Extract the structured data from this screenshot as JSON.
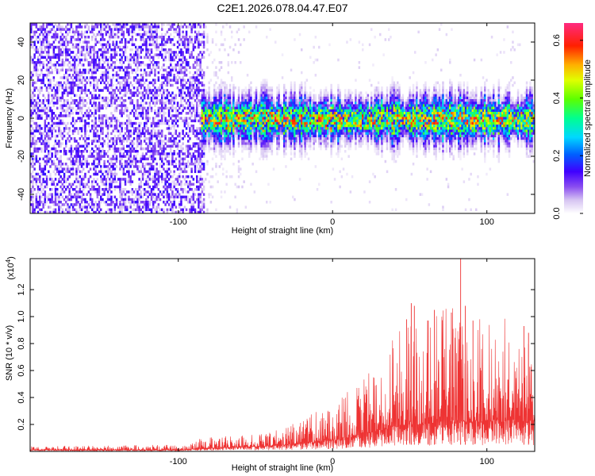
{
  "title": "C2E1.2026.078.04.47.E07",
  "chart_data": [
    {
      "type": "heatmap",
      "name": "spectrogram",
      "xlabel": "Height of straight line (km)",
      "ylabel": "Frequency (Hz)",
      "xlim": [
        -196,
        131
      ],
      "ylim": [
        -50,
        50
      ],
      "x_ticks": [
        -100,
        0,
        100
      ],
      "x_tick_labels": [
        "-100",
        "0",
        "100"
      ],
      "y_ticks": [
        -40,
        -20,
        0,
        20,
        40
      ],
      "y_tick_labels": [
        "-40",
        "-20",
        "0",
        "20",
        "40"
      ],
      "colorbar": {
        "label": "Normalized spectral amplitude",
        "range": [
          0,
          0.66
        ],
        "ticks": [
          0,
          0.2,
          0.4,
          0.6
        ],
        "tick_labels": [
          "0.0",
          "0.2",
          "0.4",
          "0.6"
        ]
      },
      "features": {
        "noise_region_x": [
          -196,
          -83
        ],
        "noise_amplitude": 0.1,
        "sparse_region_x": [
          -83,
          -60
        ],
        "signal_band_center_hz": 0,
        "signal_band_halfwidth_hz": 6,
        "signal_start_x": -86,
        "signal_peak_amplitude": 0.65
      }
    },
    {
      "type": "line",
      "name": "snr",
      "xlabel": "Height of straight line (km)",
      "ylabel": "SNR (10 * v/v)",
      "y_multiplier_label": "(x10",
      "y_multiplier_exp": "4",
      "xlim": [
        -196,
        131
      ],
      "ylim": [
        0,
        1.43
      ],
      "x_ticks": [
        -100,
        0,
        100
      ],
      "x_tick_labels": [
        "-100",
        "0",
        "100"
      ],
      "y_ticks": [
        0.2,
        0.4,
        0.6,
        0.8,
        1.0,
        1.2
      ],
      "y_tick_labels": [
        "0.2",
        "0.4",
        "0.6",
        "0.8",
        "1.0",
        "1.2"
      ],
      "color": "#ee3333",
      "envelope": {
        "x": [
          -196,
          -100,
          -85,
          -60,
          -40,
          -20,
          0,
          10,
          20,
          30,
          40,
          50,
          60,
          70,
          80,
          90,
          100,
          110,
          120,
          131
        ],
        "base": [
          0.01,
          0.01,
          0.02,
          0.03,
          0.04,
          0.06,
          0.08,
          0.1,
          0.12,
          0.15,
          0.18,
          0.2,
          0.2,
          0.22,
          0.22,
          0.22,
          0.22,
          0.22,
          0.22,
          0.22
        ],
        "peak": [
          0.04,
          0.05,
          0.1,
          0.12,
          0.15,
          0.25,
          0.35,
          0.45,
          0.55,
          0.7,
          0.85,
          1.0,
          1.0,
          1.05,
          1.1,
          1.05,
          1.0,
          1.0,
          0.9,
          0.75
        ]
      },
      "spikes": [
        {
          "x": 48,
          "y": 0.98
        },
        {
          "x": 51,
          "y": 1.1
        },
        {
          "x": 53,
          "y": 1.08
        },
        {
          "x": 62,
          "y": 0.97
        },
        {
          "x": 66,
          "y": 1.05
        },
        {
          "x": 77,
          "y": 1.03
        },
        {
          "x": 83,
          "y": 1.43
        },
        {
          "x": 86,
          "y": 1.08
        },
        {
          "x": 91,
          "y": 0.97
        },
        {
          "x": 124,
          "y": 0.93
        },
        {
          "x": 127,
          "y": 0.88
        }
      ]
    }
  ]
}
